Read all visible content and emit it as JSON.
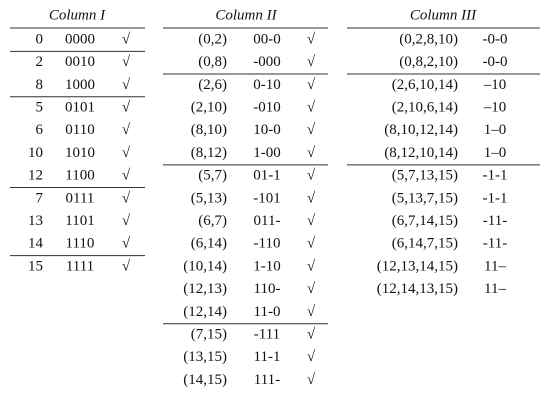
{
  "columns": [
    {
      "title": "Column I",
      "groups": [
        {
          "rows": [
            [
              "0",
              "0000",
              "√"
            ]
          ]
        },
        {
          "rows": [
            [
              "2",
              "0010",
              "√"
            ],
            [
              "8",
              "1000",
              "√"
            ]
          ]
        },
        {
          "rows": [
            [
              "5",
              "0101",
              "√"
            ],
            [
              "6",
              "0110",
              "√"
            ],
            [
              "10",
              "1010",
              "√"
            ],
            [
              "12",
              "1100",
              "√"
            ]
          ]
        },
        {
          "rows": [
            [
              "7",
              "0111",
              "√"
            ],
            [
              "13",
              "1101",
              "√"
            ],
            [
              "14",
              "1110",
              "√"
            ]
          ]
        },
        {
          "rows": [
            [
              "15",
              "1111",
              "√"
            ]
          ]
        }
      ]
    },
    {
      "title": "Column II",
      "groups": [
        {
          "rows": [
            [
              "(0,2)",
              "00-0",
              "√"
            ],
            [
              "(0,8)",
              "-000",
              "√"
            ]
          ]
        },
        {
          "rows": [
            [
              "(2,6)",
              "0-10",
              "√"
            ],
            [
              "(2,10)",
              "-010",
              "√"
            ],
            [
              "(8,10)",
              "10-0",
              "√"
            ],
            [
              "(8,12)",
              "1-00",
              "√"
            ]
          ]
        },
        {
          "rows": [
            [
              "(5,7)",
              "01-1",
              "√"
            ],
            [
              "(5,13)",
              "-101",
              "√"
            ],
            [
              "(6,7)",
              "011-",
              "√"
            ],
            [
              "(6,14)",
              "-110",
              "√"
            ],
            [
              "(10,14)",
              "1-10",
              "√"
            ],
            [
              "(12,13)",
              "110-",
              "√"
            ],
            [
              "(12,14)",
              "11-0",
              "√"
            ]
          ]
        },
        {
          "rows": [
            [
              "(7,15)",
              "-111",
              "√"
            ],
            [
              "(13,15)",
              "11-1",
              "√"
            ],
            [
              "(14,15)",
              "111-",
              "√"
            ]
          ]
        }
      ]
    },
    {
      "title": "Column III",
      "groups": [
        {
          "rows": [
            [
              "(0,2,8,10)",
              "-0-0"
            ],
            [
              "(0,8,2,10)",
              "-0-0"
            ]
          ]
        },
        {
          "rows": [
            [
              "(2,6,10,14)",
              "–10"
            ],
            [
              "(2,10,6,14)",
              "–10"
            ],
            [
              "(8,10,12,14)",
              "1–0"
            ],
            [
              "(8,12,10,14)",
              "1–0"
            ]
          ]
        },
        {
          "rows": [
            [
              "(5,7,13,15)",
              "-1-1"
            ],
            [
              "(5,13,7,15)",
              "-1-1"
            ],
            [
              "(6,7,14,15)",
              "-11-"
            ],
            [
              "(6,14,7,15)",
              "-11-"
            ],
            [
              "(12,13,14,15)",
              "11–"
            ],
            [
              "(12,14,13,15)",
              "11–"
            ]
          ]
        }
      ]
    }
  ]
}
